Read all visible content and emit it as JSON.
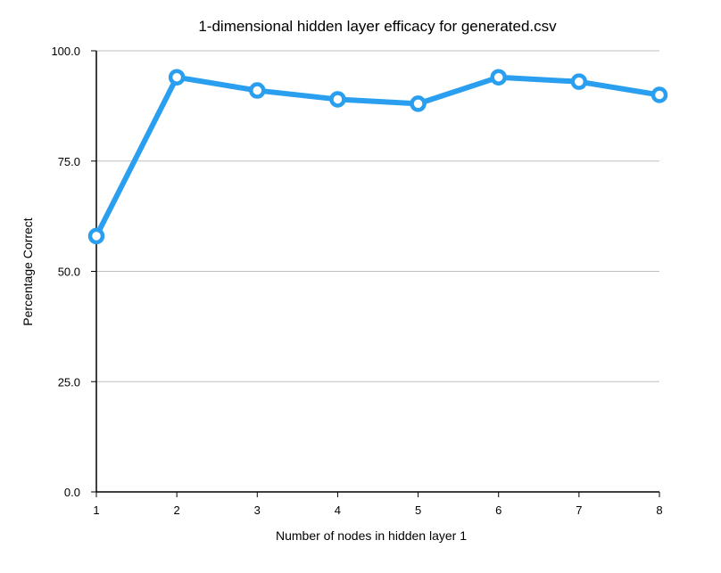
{
  "chart_data": {
    "type": "line",
    "title": "1-dimensional hidden layer efficacy for generated.csv",
    "xlabel": "Number of nodes in hidden layer 1",
    "ylabel": "Percentage Correct",
    "x": [
      1,
      2,
      3,
      4,
      5,
      6,
      7,
      8
    ],
    "x_tick_labels": [
      "1",
      "2",
      "3",
      "4",
      "5",
      "6",
      "7",
      "8"
    ],
    "series": [
      {
        "values": [
          58,
          94,
          91,
          89,
          88,
          94,
          93,
          90
        ],
        "color": "#2a9ff0"
      }
    ],
    "ylim": [
      0,
      100
    ],
    "xlim": [
      1,
      8
    ],
    "y_ticks": [
      0,
      25,
      50,
      75,
      100
    ],
    "y_tick_labels": [
      "0.0",
      "25.0",
      "50.0",
      "75.0",
      "100.0"
    ],
    "grid": "horizontal",
    "colors": {
      "line": "#2a9ff0",
      "grid": "#bfbfbf",
      "axis": "#000000"
    }
  }
}
